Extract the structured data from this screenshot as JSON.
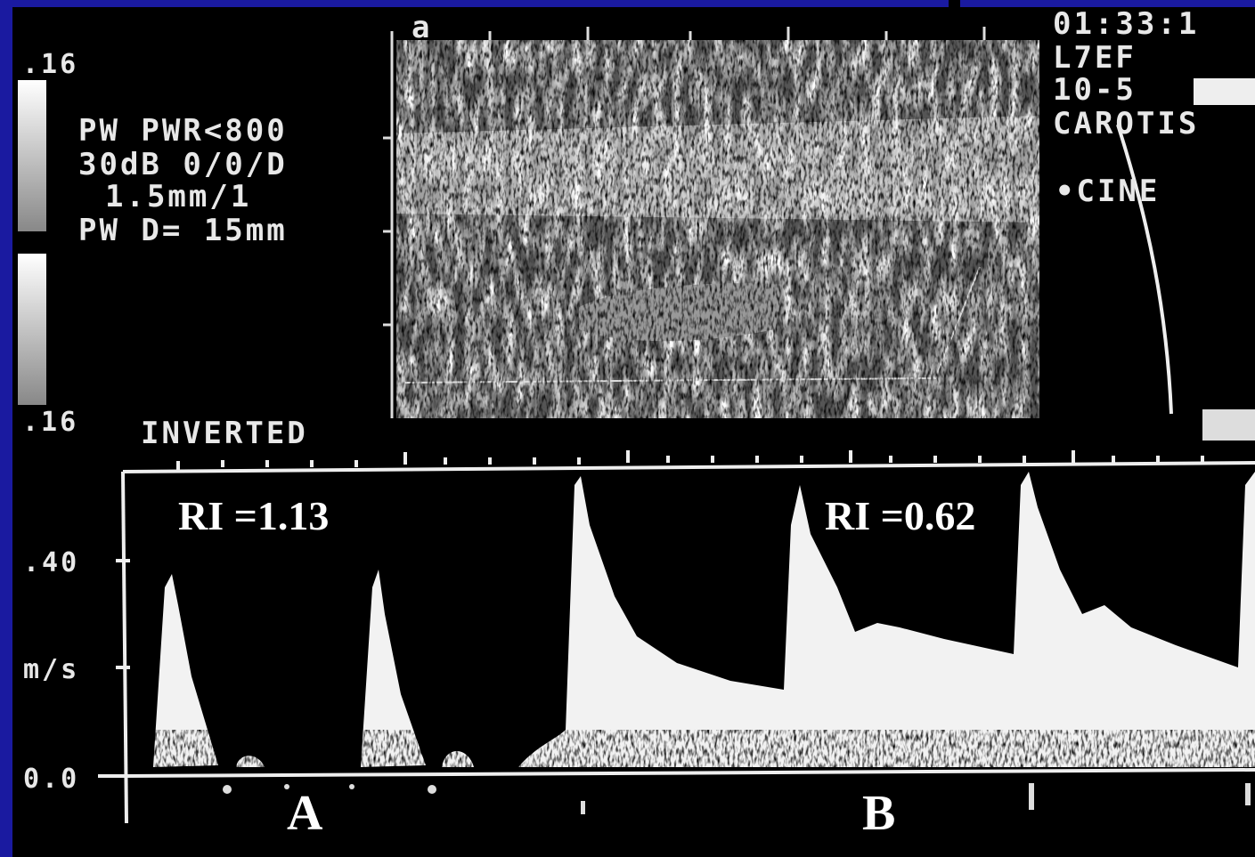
{
  "ultrasound": {
    "header": {
      "frame": "a",
      "time": "01:33:1",
      "probe": "L7EF",
      "freq": "10-5",
      "preset": "CAROTIS",
      "mode": "•CINE"
    },
    "settings": {
      "scale_top": ".16",
      "line1": "PW PWR<800",
      "line2": "30dB 0/0/D",
      "line3": "1.5mm/1",
      "line4": "PW D= 15mm",
      "scale_bottom": ".16",
      "inverted": "INVERTED"
    },
    "doppler": {
      "axis_top": ".40",
      "axis_unit": "m/s",
      "axis_zero": "0.0",
      "ri_a": "RI =1.13",
      "ri_b": "RI =0.62",
      "label_a": "A",
      "label_b": "B"
    }
  }
}
